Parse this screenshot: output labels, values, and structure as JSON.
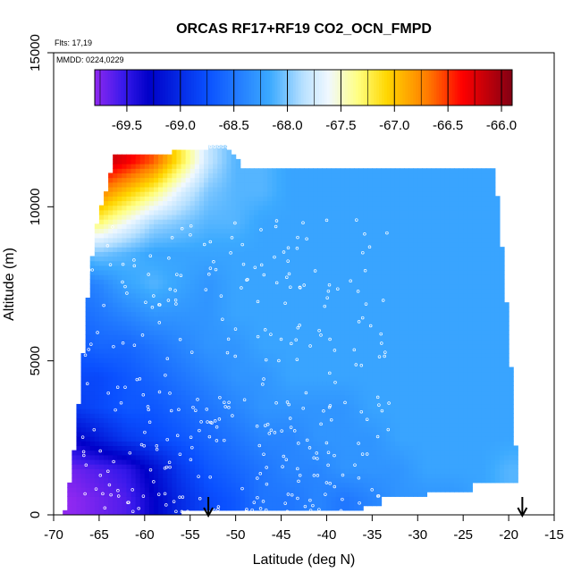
{
  "chart_data": {
    "type": "heatmap",
    "title": "ORCAS RF17+RF19 CO2_OCN_FMPD",
    "annotations": [
      "Flts: 17,19",
      "MMDD: 0224,0229"
    ],
    "xlabel": "Latitude (deg N)",
    "ylabel": "Altitude (m)",
    "xlim": [
      -70,
      -15
    ],
    "ylim": [
      0,
      15000
    ],
    "x_ticks": [
      -70,
      -65,
      -60,
      -55,
      -50,
      -45,
      -40,
      -35,
      -30,
      -25,
      -20,
      -15
    ],
    "y_ticks": [
      0,
      5000,
      10000,
      15000
    ],
    "colorbar": {
      "range": [
        -69.8,
        -65.9
      ],
      "ticks": [
        -69.5,
        -69.0,
        -68.5,
        -68.0,
        -67.5,
        -67.0,
        -66.5,
        -66.0
      ],
      "tick_labels": [
        "-69.5",
        "-69.0",
        "-68.5",
        "-68.0",
        "-67.5",
        "-67.0",
        "-66.5",
        "-66.0"
      ]
    },
    "field_grid": {
      "latitudes": [
        -68,
        -65,
        -62,
        -59,
        -56,
        -53,
        -50,
        -47,
        -44,
        -41,
        -38,
        -35,
        -32,
        -29,
        -26,
        -23,
        -20
      ],
      "altitudes": [
        500,
        1500,
        2500,
        3500,
        4500,
        5500,
        6500,
        7500,
        8500,
        9500,
        10500,
        11500
      ],
      "values": [
        [
          -69.8,
          -69.7,
          -69.6,
          -69.3,
          -69.0,
          -68.8,
          -68.7,
          -68.5,
          -68.5,
          -68.4,
          -68.5,
          -68.4,
          -68.3,
          -68.3,
          -68.3,
          -68.2,
          -68.1
        ],
        [
          -69.7,
          -69.6,
          -69.5,
          -69.2,
          -68.9,
          -68.7,
          -68.6,
          -68.5,
          -68.4,
          -68.4,
          -68.3,
          -68.3,
          -68.3,
          -68.2,
          -68.2,
          -68.2,
          -68.1
        ],
        [
          -69.3,
          -69.1,
          -68.9,
          -68.8,
          -68.7,
          -68.6,
          -68.5,
          -68.4,
          -68.4,
          -68.3,
          -68.3,
          -68.3,
          -68.2,
          -68.2,
          -68.2,
          -68.2,
          -68.2
        ],
        [
          -68.9,
          -68.8,
          -68.7,
          -68.7,
          -68.6,
          -68.5,
          -68.4,
          -68.3,
          -68.3,
          -68.3,
          -68.3,
          -68.2,
          -68.2,
          -68.2,
          -68.2,
          -68.2,
          -68.2
        ],
        [
          -68.8,
          -68.8,
          -68.7,
          -68.6,
          -68.5,
          -68.4,
          -68.3,
          -68.3,
          -68.2,
          -68.2,
          -68.2,
          -68.2,
          -68.2,
          -68.2,
          -68.2,
          -68.2,
          -68.2
        ],
        [
          -68.7,
          -68.6,
          -68.6,
          -68.5,
          -68.4,
          -68.3,
          -68.3,
          -68.2,
          -68.2,
          -68.2,
          -68.2,
          -68.2,
          -68.2,
          -68.2,
          -68.2,
          -68.2,
          -68.2
        ],
        [
          -68.6,
          -68.5,
          -68.4,
          -68.3,
          -68.3,
          -68.3,
          -68.2,
          -68.2,
          -68.2,
          -68.2,
          -68.2,
          -68.2,
          -68.2,
          -68.2,
          -68.2,
          -68.2,
          -68.2
        ],
        [
          -68.5,
          -68.4,
          -68.2,
          -68.1,
          -68.2,
          -68.3,
          -68.2,
          -68.2,
          -68.2,
          -68.2,
          -68.2,
          -68.2,
          -68.2,
          -68.2,
          -68.2,
          -68.2,
          -68.2
        ],
        [
          -68.1,
          -68.0,
          -68.1,
          -68.2,
          -68.2,
          -68.2,
          -68.2,
          -68.2,
          -68.2,
          -68.2,
          -68.2,
          -68.2,
          -68.2,
          -68.2,
          -68.2,
          -68.2,
          -68.2
        ],
        [
          -67.4,
          -67.3,
          -67.6,
          -67.9,
          -68.0,
          -68.1,
          -68.1,
          -68.2,
          -68.2,
          -68.2,
          -68.2,
          -68.2,
          -68.2,
          -68.2,
          -68.2,
          -68.2,
          -68.2
        ],
        [
          -66.8,
          -66.7,
          -67.0,
          -67.3,
          -67.7,
          -68.0,
          -68.1,
          -68.1,
          -68.2,
          -68.2,
          -68.2,
          -68.2,
          -68.2,
          -68.2,
          -68.2,
          -68.2,
          -68.2
        ],
        [
          -66.0,
          -66.1,
          -66.3,
          -66.6,
          -67.2,
          -67.8,
          -68.1,
          -68.1,
          -68.2,
          -68.2,
          -68.2,
          -68.2,
          -68.2,
          -68.2,
          -68.2,
          -68.2,
          -68.2
        ]
      ]
    },
    "markers": {
      "type": "arrow",
      "x": [
        -53,
        -18.5
      ]
    },
    "grid": false,
    "legend": "colorbar top"
  }
}
